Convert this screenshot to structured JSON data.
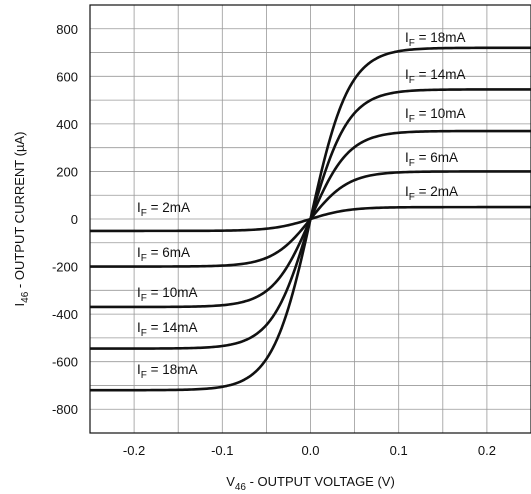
{
  "chart_data": {
    "type": "line",
    "xlabel": {
      "main": "V",
      "sub": "46",
      "rest": " - OUTPUT VOLTAGE (V)"
    },
    "ylabel": {
      "main": "I",
      "sub": "46",
      "rest": " - OUTPUT CURRENT (µA)"
    },
    "xlim": [
      -0.25,
      0.25
    ],
    "ylim": [
      -900,
      900
    ],
    "x_ticks": [
      -0.2,
      -0.1,
      0.0,
      0.1,
      0.2
    ],
    "x_tick_labels": [
      "-0.2",
      "-0.1",
      "0.0",
      "0.1",
      "0.2"
    ],
    "y_ticks": [
      800,
      600,
      400,
      200,
      0,
      -200,
      -400,
      -600,
      -800
    ],
    "y_tick_labels": [
      "800",
      "600",
      "400",
      "200",
      "0",
      "-200",
      "-400",
      "-600",
      "-800"
    ],
    "grid": true,
    "series": [
      {
        "name": "IF = 2mA",
        "saturation": 50,
        "x": [
          -0.25,
          -0.1,
          -0.05,
          0.0,
          0.05,
          0.1,
          0.25
        ],
        "values": [
          -50,
          -44,
          -31,
          0,
          31,
          44,
          50
        ]
      },
      {
        "name": "IF = 6mA",
        "saturation": 200,
        "x": [
          -0.25,
          -0.1,
          -0.05,
          0.0,
          0.05,
          0.1,
          0.25
        ],
        "values": [
          -200,
          -190,
          -150,
          0,
          150,
          190,
          200
        ]
      },
      {
        "name": "IF = 10mA",
        "saturation": 370,
        "x": [
          -0.25,
          -0.1,
          -0.05,
          0.0,
          0.05,
          0.1,
          0.25
        ],
        "values": [
          -370,
          -355,
          -290,
          0,
          290,
          355,
          370
        ]
      },
      {
        "name": "IF = 14mA",
        "saturation": 545,
        "x": [
          -0.25,
          -0.1,
          -0.05,
          0.0,
          0.05,
          0.1,
          0.25
        ],
        "values": [
          -545,
          -522,
          -420,
          0,
          420,
          522,
          545
        ]
      },
      {
        "name": "IF = 18mA",
        "saturation": 720,
        "x": [
          -0.25,
          -0.1,
          -0.05,
          0.0,
          0.05,
          0.1,
          0.25
        ],
        "values": [
          -720,
          -680,
          -520,
          0,
          520,
          680,
          720
        ]
      }
    ],
    "curve_labels": {
      "prefix": "I",
      "sub": "F",
      "right": [
        {
          "text": " = 18mA"
        },
        {
          "text": " = 14mA"
        },
        {
          "text": " = 10mA"
        },
        {
          "text": " = 6mA"
        },
        {
          "text": " = 2mA"
        }
      ],
      "left": [
        {
          "text": " = 2mA"
        },
        {
          "text": " = 6mA"
        },
        {
          "text": " = 10mA"
        },
        {
          "text": " = 14mA"
        },
        {
          "text": " = 18mA"
        }
      ]
    }
  }
}
